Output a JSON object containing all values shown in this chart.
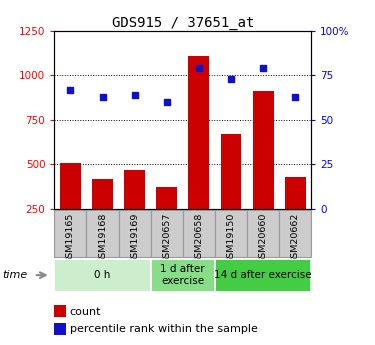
{
  "title": "GDS915 / 37651_at",
  "samples": [
    "GSM19165",
    "GSM19168",
    "GSM19169",
    "GSM20657",
    "GSM20658",
    "GSM19150",
    "GSM20660",
    "GSM20662"
  ],
  "counts": [
    510,
    420,
    470,
    370,
    1110,
    670,
    910,
    430
  ],
  "percentiles": [
    67,
    63,
    64,
    60,
    79,
    73,
    79,
    63
  ],
  "groups": [
    {
      "label": "0 h",
      "start": 0,
      "end": 3,
      "color": "#cceecc"
    },
    {
      "label": "1 d after\nexercise",
      "start": 3,
      "end": 5,
      "color": "#88dd88"
    },
    {
      "label": "14 d after exercise",
      "start": 5,
      "end": 8,
      "color": "#44cc44"
    }
  ],
  "ylim_left": [
    250,
    1250
  ],
  "ylim_right": [
    0,
    100
  ],
  "yticks_left": [
    250,
    500,
    750,
    1000,
    1250
  ],
  "yticks_right": [
    0,
    25,
    50,
    75,
    100
  ],
  "bar_color": "#cc0000",
  "dot_color": "#1111cc",
  "bg_color": "#ffffff",
  "legend_count": "count",
  "legend_pct": "percentile rank within the sample",
  "sample_box_color": "#cccccc",
  "sample_box_edge": "#999999"
}
